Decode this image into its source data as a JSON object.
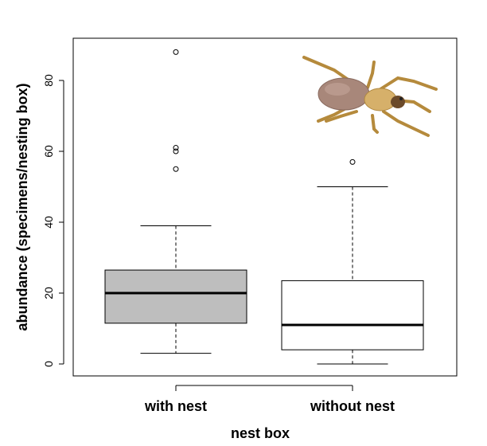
{
  "chart_data": {
    "type": "box",
    "title": "",
    "xlabel": "nest box",
    "ylabel": "abundance (specimens/nesting box)",
    "ylim": [
      -3,
      91
    ],
    "yticks": [
      0,
      20,
      40,
      60,
      80
    ],
    "grid": false,
    "legend": "none",
    "categories": [
      "with nest",
      "without nest"
    ],
    "boxes": [
      {
        "category": "with nest",
        "fill": "#bebebe",
        "min": 3,
        "q1": 11.5,
        "median": 20,
        "q3": 26.5,
        "max": 39,
        "outliers": [
          55,
          60,
          61,
          88
        ]
      },
      {
        "category": "without nest",
        "fill": "#ffffff",
        "min": 0,
        "q1": 4,
        "median": 11,
        "q3": 23.5,
        "max": 50,
        "outliers": [
          57
        ]
      }
    ],
    "illustration": "spider-photo"
  }
}
